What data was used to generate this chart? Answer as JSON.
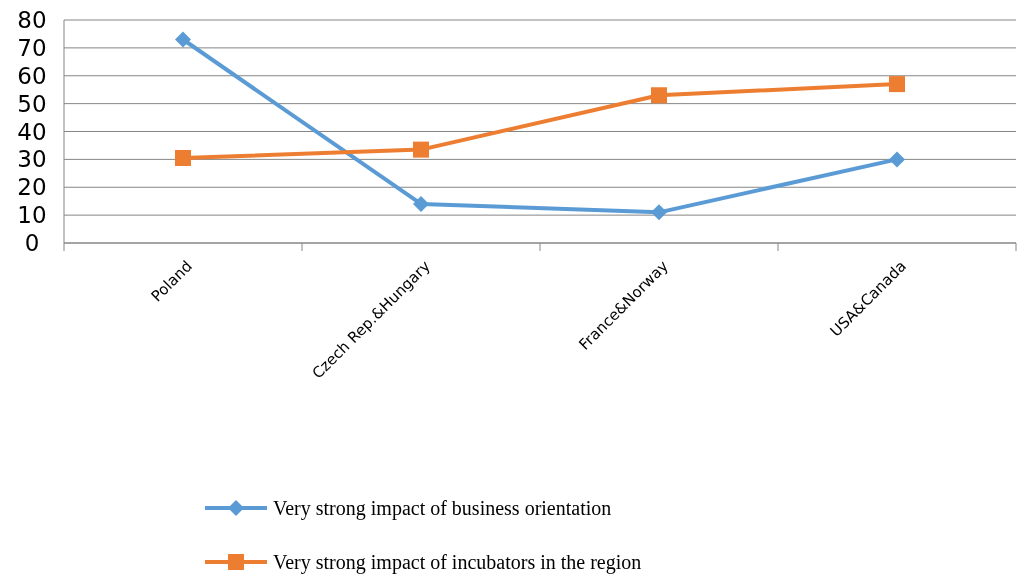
{
  "chart_data": {
    "type": "line",
    "categories": [
      "Poland",
      "Czech Rep.&Hungary",
      "France&Norway",
      "USA&Canada"
    ],
    "series": [
      {
        "name": "Very strong impact of business orientation",
        "color": "#5b9bd5",
        "marker": "diamond",
        "values": [
          73,
          14,
          11,
          30
        ]
      },
      {
        "name": "Very strong impact of incubators in the region",
        "color": "#ed7d31",
        "marker": "square",
        "values": [
          30.5,
          33.5,
          53,
          57
        ]
      }
    ],
    "ylim": [
      0,
      80
    ],
    "yticks": [
      0,
      10,
      20,
      30,
      40,
      50,
      60,
      70,
      80
    ],
    "grid": "y",
    "legend": "bottom",
    "line_style": "solid"
  }
}
